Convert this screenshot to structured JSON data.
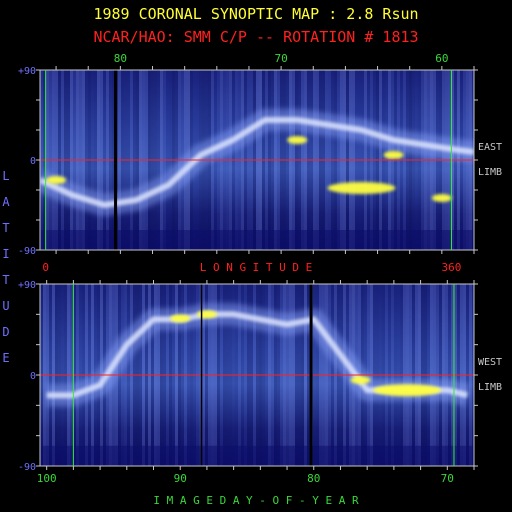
{
  "title": "1989 CORONAL SYNOPTIC MAP : 2.8 Rsun",
  "subtitle": "NCAR/HAO: SMM C/P -- ROTATION # 1813",
  "colors": {
    "title": "#ffff33",
    "subtitle": "#ff2020",
    "axis": "#c8c8c8",
    "latitude_label": "#6f6fff",
    "longitude_label": "#ff2020",
    "doy_label": "#39d839",
    "equator": "#ff2020",
    "day_marker": "#33ee33",
    "background": "#000000",
    "map_low": "#0d0f6a",
    "map_high": "#ffff40"
  },
  "chart_data": [
    {
      "type": "heatmap",
      "panel": "east-limb",
      "side_label": [
        "EAST",
        "LIMB"
      ],
      "ylabel": "LATITUDE",
      "ylim": [
        -90,
        90
      ],
      "yticks": [
        "+90",
        "0",
        "-90"
      ],
      "top_axis": {
        "ticks": [
          "80",
          "70",
          "60"
        ],
        "values": [
          80,
          70,
          60
        ],
        "range": [
          85,
          58
        ]
      },
      "bottom_axis": {
        "label": "LONGITUDE",
        "ticks": [
          "0",
          "360"
        ],
        "values": [
          0,
          360
        ],
        "range": [
          -5,
          380
        ]
      },
      "equator_lat": 0,
      "streamer_belt": {
        "x": [
          85,
          83,
          81,
          79,
          77,
          75,
          73,
          71,
          69,
          67,
          65,
          63,
          61,
          59,
          58
        ],
        "lat": [
          -20,
          -35,
          -45,
          -40,
          -25,
          5,
          20,
          40,
          40,
          35,
          30,
          20,
          15,
          10,
          8
        ]
      },
      "bright_spots": [
        {
          "x": 65,
          "lat": -28
        },
        {
          "x": 63,
          "lat": 5
        },
        {
          "x": 69,
          "lat": 20
        },
        {
          "x": 84,
          "lat": -20
        },
        {
          "x": 60,
          "lat": -38
        }
      ]
    },
    {
      "type": "heatmap",
      "panel": "west-limb",
      "side_label": [
        "WEST",
        "LIMB"
      ],
      "ylabel": "LATITUDE",
      "ylim": [
        -90,
        90
      ],
      "yticks": [
        "+90",
        "0",
        "-90"
      ],
      "xlabel": "IMAGE DAY-OF-YEAR",
      "bottom_axis": {
        "ticks": [
          "100",
          "90",
          "80",
          "70"
        ],
        "values": [
          100,
          90,
          80,
          70
        ],
        "range": [
          100.5,
          68
        ]
      },
      "equator_lat": 0,
      "streamer_belt": {
        "x": [
          100,
          98,
          96,
          94,
          92,
          90,
          88,
          86,
          84,
          82,
          80,
          78,
          76,
          74,
          72,
          70,
          68.5
        ],
        "lat": [
          -20,
          -20,
          -10,
          30,
          55,
          55,
          60,
          60,
          55,
          50,
          55,
          20,
          -15,
          -15,
          -15,
          -15,
          -20
        ]
      },
      "bright_spots": [
        {
          "x": 73,
          "lat": -15
        },
        {
          "x": 88,
          "lat": 60
        },
        {
          "x": 90,
          "lat": 56
        },
        {
          "x": 76.5,
          "lat": -5
        }
      ]
    }
  ]
}
